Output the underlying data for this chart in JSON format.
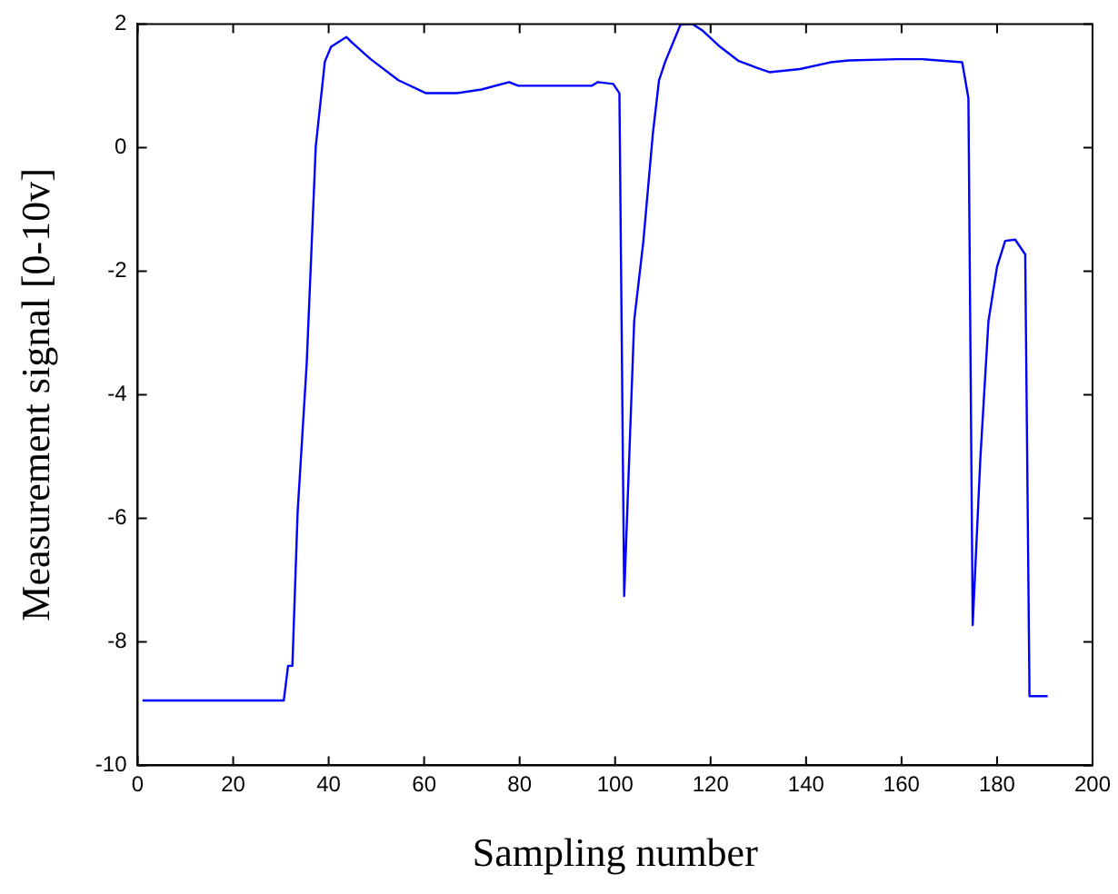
{
  "chart_data": {
    "type": "line",
    "xlabel": "Sampling number",
    "ylabel": "Measurement signal [0-10v]",
    "xlim": [
      0,
      200
    ],
    "xticks": [
      0,
      20,
      40,
      60,
      80,
      100,
      120,
      140,
      160,
      180,
      200
    ],
    "ylim": [
      -10,
      2
    ],
    "yticks": [
      -10,
      -8,
      -6,
      -4,
      -2,
      0,
      2
    ],
    "marker": "none",
    "line_style": "solid",
    "series": [
      {
        "color": "#0000ff",
        "x": [
          1,
          30.6,
          31.5,
          32.4,
          33.5,
          35.4,
          37.3,
          39.2,
          40.5,
          43.7,
          44.9,
          48.8,
          54.6,
          60.4,
          66.8,
          72,
          77.8,
          79.7,
          95.1,
          96.4,
          99.6,
          100.9,
          101.9,
          104,
          105.9,
          107.9,
          109.2,
          110.5,
          113.7,
          116.2,
          118.2,
          122,
          125.9,
          129.7,
          132.3,
          138.7,
          145.1,
          149,
          159.2,
          164.4,
          172.7,
          174,
          174.9,
          176.5,
          178.2,
          180,
          181.7,
          183.8,
          185.9,
          186.8,
          190.6
        ],
        "values": [
          -8.95,
          -8.95,
          -8.39,
          -8.39,
          -5.9,
          -3.5,
          0.02,
          1.39,
          1.63,
          1.79,
          1.7,
          1.43,
          1.09,
          0.88,
          0.88,
          0.94,
          1.06,
          1.0,
          1.0,
          1.06,
          1.03,
          0.88,
          -7.26,
          -2.8,
          -1.53,
          0.22,
          1.09,
          1.39,
          1.99,
          2.0,
          1.9,
          1.63,
          1.4,
          1.29,
          1.22,
          1.27,
          1.38,
          1.41,
          1.43,
          1.43,
          1.38,
          0.8,
          -7.73,
          -5.04,
          -2.81,
          -1.93,
          -1.51,
          -1.49,
          -1.73,
          -8.88,
          -8.88
        ]
      }
    ]
  }
}
